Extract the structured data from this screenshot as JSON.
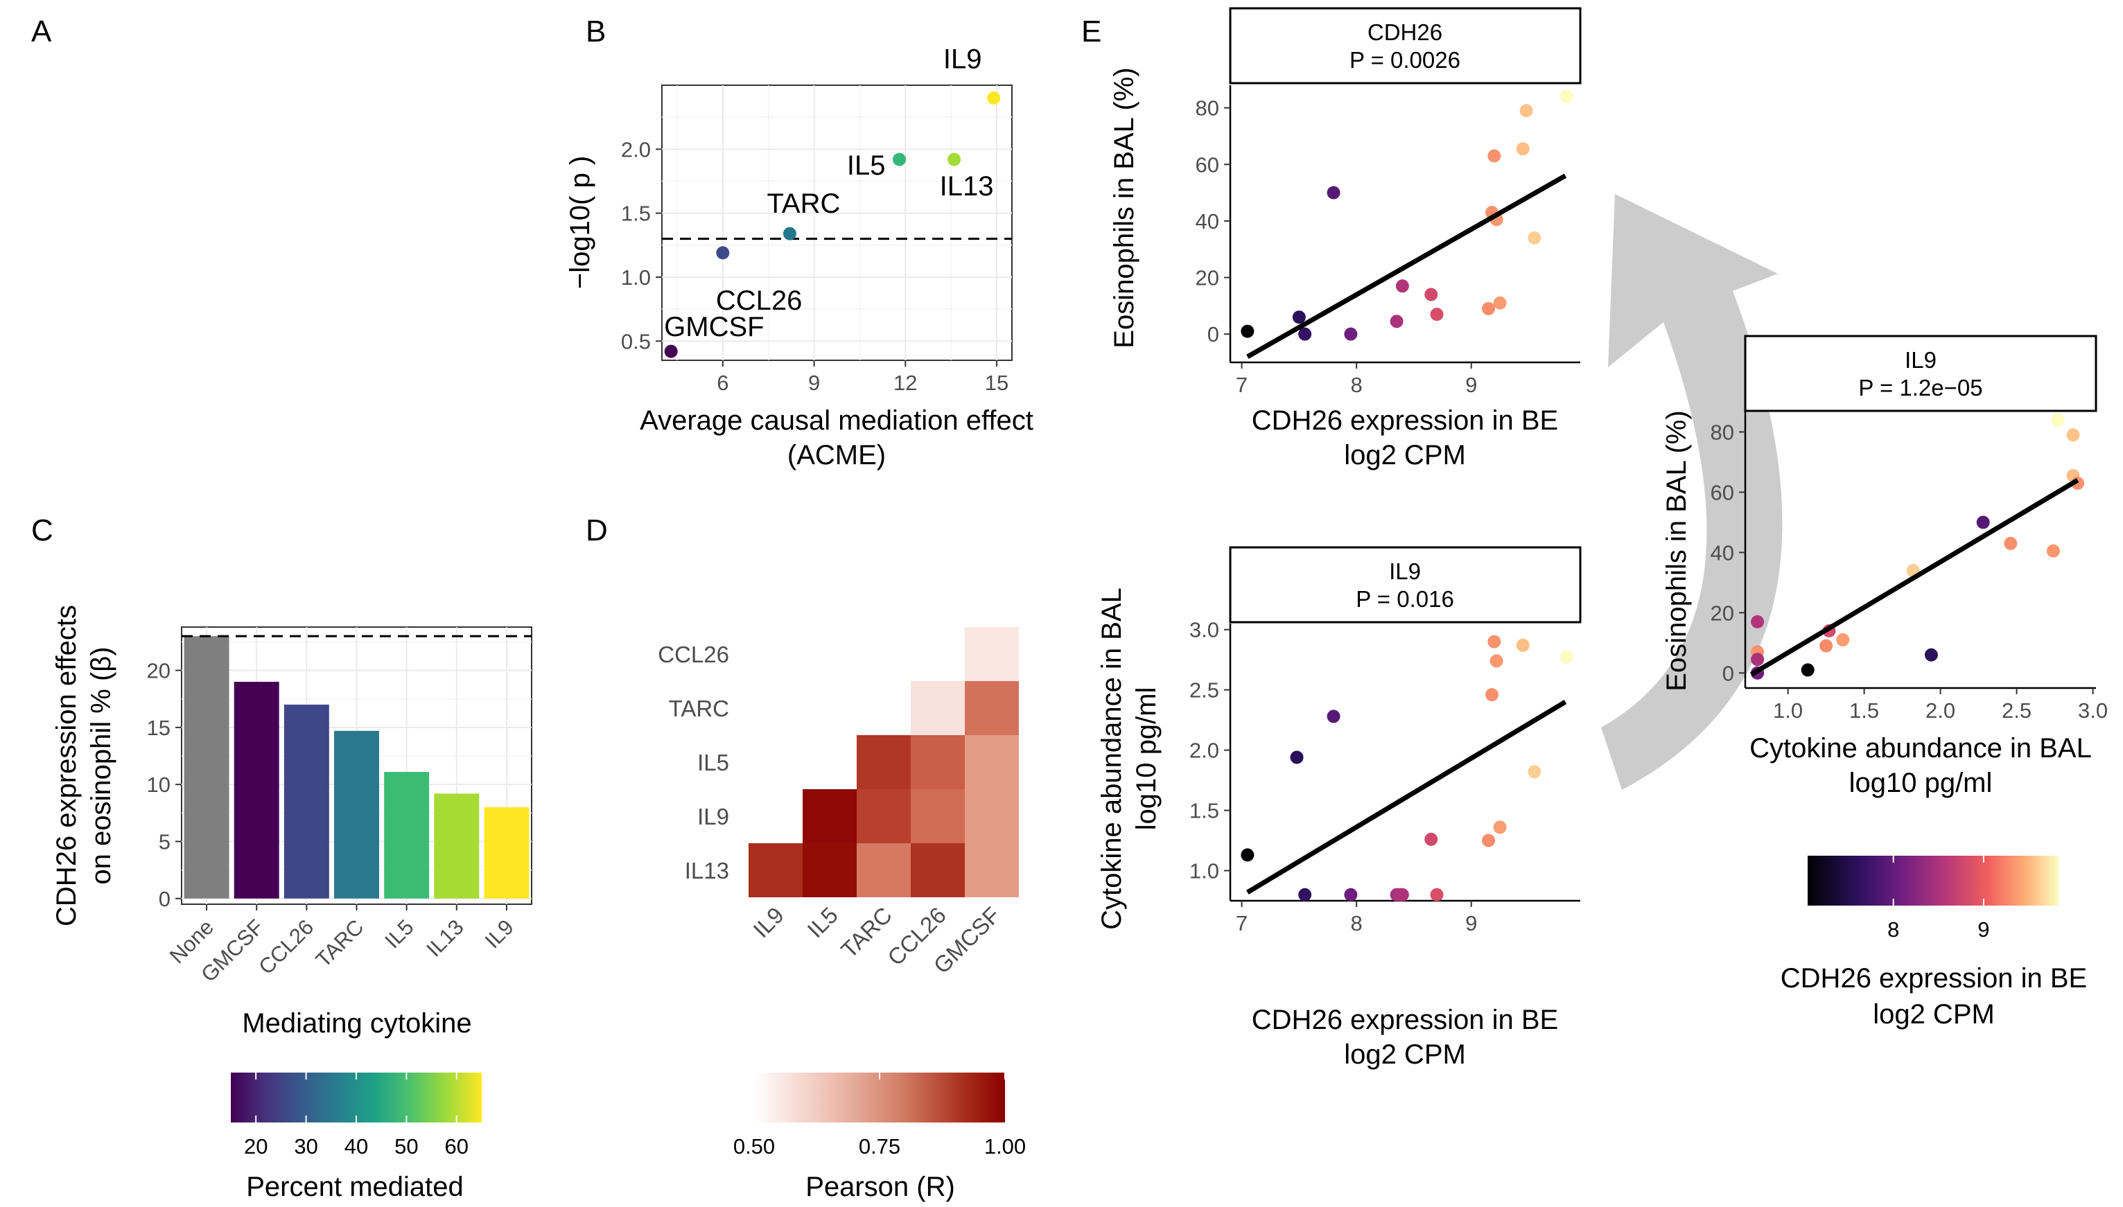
{
  "panel_letters": {
    "a": "A",
    "b": "B",
    "c": "C",
    "d": "D",
    "e": "E"
  },
  "colors": {
    "viridis": [
      "#440154",
      "#46337f",
      "#365c8d",
      "#277f8e",
      "#1fa187",
      "#4ac16d",
      "#9fda3a",
      "#fde725"
    ],
    "magma": [
      "#000004",
      "#2c115f",
      "#721f81",
      "#b73779",
      "#f1605d",
      "#feb078",
      "#fcfdbf"
    ],
    "reds": [
      "#ffffff",
      "#f4cfc5",
      "#e39a86",
      "#c8573f",
      "#a52a18",
      "#8b0000"
    ],
    "none_bar": "#7f7f7f"
  },
  "chart_data": [
    {
      "id": "B",
      "type": "scatter",
      "xlabel": "Average causal mediation effect\n(ACME)",
      "ylabel": "−log10( p )",
      "xticks": [
        "6",
        "9",
        "12",
        "15"
      ],
      "yticks": [
        "0.5",
        "1.0",
        "1.5",
        "2.0"
      ],
      "xlim": [
        4,
        15.5
      ],
      "ylim": [
        0.35,
        2.5
      ],
      "threshold": 1.3,
      "points": [
        {
          "name": "GMCSF",
          "x": 4.3,
          "y": 0.42,
          "color": "#440154"
        },
        {
          "name": "CCL26",
          "x": 6.0,
          "y": 1.19,
          "color": "#3e4a89"
        },
        {
          "name": "TARC",
          "x": 8.2,
          "y": 1.34,
          "color": "#24788e"
        },
        {
          "name": "IL5",
          "x": 11.8,
          "y": 1.92,
          "color": "#36b779"
        },
        {
          "name": "IL13",
          "x": 13.6,
          "y": 1.92,
          "color": "#a5db36"
        },
        {
          "name": "IL9",
          "x": 14.9,
          "y": 2.4,
          "color": "#fde725"
        }
      ]
    },
    {
      "id": "C",
      "type": "bar",
      "ylabel": "CDH26 expression effects\non eosinophil % (β)",
      "xlabel": "Mediating cytokine",
      "categories": [
        "None",
        "GMCSF",
        "CCL26",
        "TARC",
        "IL5",
        "IL13",
        "IL9"
      ],
      "values": [
        23.0,
        19.0,
        17.0,
        14.7,
        11.1,
        9.2,
        8.0
      ],
      "colors": [
        "#7f7f7f",
        "#440154",
        "#3f4788",
        "#2a788e",
        "#3cbb75",
        "#a6db35",
        "#fde725"
      ],
      "yticks": [
        "0",
        "5",
        "10",
        "15",
        "20"
      ],
      "ylim": [
        -0.5,
        23.8
      ],
      "reference_line": 23.0,
      "legend": {
        "title": "Percent mediated",
        "ticks": [
          "20",
          "30",
          "40",
          "50",
          "60"
        ],
        "range": [
          15,
          65
        ],
        "values": [
          20,
          30,
          40,
          50,
          60
        ]
      }
    },
    {
      "id": "D",
      "type": "heatmap",
      "rows": [
        "CCL26",
        "TARC",
        "IL5",
        "IL9",
        "IL13"
      ],
      "cols": [
        "IL9",
        "IL5",
        "TARC",
        "CCL26",
        "GMCSF"
      ],
      "values": [
        [
          null,
          null,
          null,
          null,
          0.55
        ],
        [
          null,
          null,
          null,
          0.56,
          0.76
        ],
        [
          null,
          null,
          0.87,
          0.79,
          0.7
        ],
        [
          null,
          0.98,
          0.85,
          0.77,
          0.7
        ],
        [
          0.89,
          0.97,
          0.75,
          0.88,
          0.7
        ]
      ],
      "legend": {
        "title": "Pearson (R)",
        "ticks": [
          "0.50",
          "0.75",
          "1.00"
        ],
        "range": [
          0.5,
          1.0
        ],
        "values": [
          0.5,
          0.75,
          1.0
        ]
      }
    },
    {
      "id": "E1",
      "type": "scatter",
      "strip": "CDH26\nP = 0.0026",
      "xlabel": "CDH26 expression in BE\nlog2 CPM",
      "ylabel": "Eosinophils in BAL (%)",
      "xticks": [
        "7",
        "8",
        "9"
      ],
      "yticks": [
        "0",
        "20",
        "40",
        "60",
        "80"
      ],
      "xlim": [
        6.9,
        9.95
      ],
      "ylim": [
        -10,
        88
      ],
      "fit": [
        [
          7.05,
          -8.0
        ],
        [
          9.82,
          56.0
        ]
      ],
      "x": [
        7.05,
        7.5,
        7.55,
        7.8,
        7.95,
        8.35,
        8.4,
        8.65,
        8.7,
        9.15,
        9.18,
        9.2,
        9.22,
        9.25,
        9.45,
        9.48,
        9.55,
        9.83
      ],
      "y": [
        1,
        6,
        0,
        50,
        0,
        4.5,
        17,
        14,
        7,
        9,
        43,
        63,
        40.5,
        11,
        65.5,
        79,
        34,
        84
      ],
      "c": [
        7.05,
        7.5,
        7.55,
        7.8,
        7.95,
        8.35,
        8.4,
        8.65,
        8.7,
        9.15,
        9.18,
        9.2,
        9.22,
        9.25,
        9.45,
        9.48,
        9.55,
        9.83
      ]
    },
    {
      "id": "E2",
      "type": "scatter",
      "strip": "IL9\nP = 0.016",
      "xlabel": "CDH26 expression in BE\nlog2 CPM",
      "ylabel": "Cytokine abundance in BAL\nlog10 pg/ml",
      "xticks": [
        "7",
        "8",
        "9"
      ],
      "yticks": [
        "1.0",
        "1.5",
        "2.0",
        "2.5",
        "3.0"
      ],
      "xlim": [
        6.9,
        9.95
      ],
      "ylim": [
        0.75,
        3.05
      ],
      "fit": [
        [
          7.05,
          0.82
        ],
        [
          9.82,
          2.4
        ]
      ],
      "x": [
        7.05,
        7.48,
        7.55,
        7.8,
        7.95,
        8.35,
        8.4,
        8.65,
        8.7,
        9.15,
        9.18,
        9.2,
        9.22,
        9.25,
        9.45,
        9.55,
        9.83,
        8.38
      ],
      "y": [
        1.13,
        1.94,
        0.8,
        2.28,
        0.8,
        0.8,
        0.8,
        1.26,
        0.8,
        1.25,
        2.46,
        2.9,
        2.74,
        1.36,
        2.87,
        1.82,
        2.77,
        0.8
      ],
      "c": [
        7.05,
        7.48,
        7.55,
        7.8,
        7.95,
        8.35,
        8.4,
        8.65,
        8.7,
        9.15,
        9.18,
        9.2,
        9.22,
        9.25,
        9.45,
        9.55,
        9.83,
        8.38
      ]
    },
    {
      "id": "E3",
      "type": "scatter",
      "strip": "IL9\nP = 1.2e−05",
      "xlabel": "Cytokine abundance in BAL\nlog10 pg/ml",
      "ylabel": "Eosinophils in BAL (%)",
      "xticks": [
        "1.0",
        "1.5",
        "2.0",
        "2.5",
        "3.0"
      ],
      "yticks": [
        "0",
        "20",
        "40",
        "60",
        "80"
      ],
      "xlim": [
        0.72,
        3.02
      ],
      "ylim": [
        -5,
        87
      ],
      "fit": [
        [
          0.76,
          -0.5
        ],
        [
          2.9,
          64.0
        ]
      ],
      "x": [
        0.8,
        0.8,
        0.8,
        0.8,
        1.13,
        1.25,
        1.27,
        1.36,
        1.82,
        1.94,
        2.28,
        2.46,
        2.74,
        2.77,
        2.87,
        2.87,
        2.9,
        0.8
      ],
      "y": [
        17,
        7,
        4.5,
        0,
        1,
        9,
        14,
        11,
        34,
        6,
        50,
        43,
        40.5,
        84,
        79,
        65.5,
        63,
        0
      ],
      "c": [
        8.4,
        9.2,
        8.35,
        7.55,
        7.05,
        9.15,
        8.65,
        9.25,
        9.55,
        7.5,
        7.8,
        9.18,
        9.22,
        9.83,
        9.48,
        9.45,
        9.2,
        7.95
      ],
      "legend": {
        "title": "CDH26 expression in BE\nlog2 CPM",
        "ticks": [
          "8",
          "9"
        ],
        "range": [
          7.05,
          9.83
        ],
        "values": [
          8,
          9
        ]
      }
    }
  ]
}
